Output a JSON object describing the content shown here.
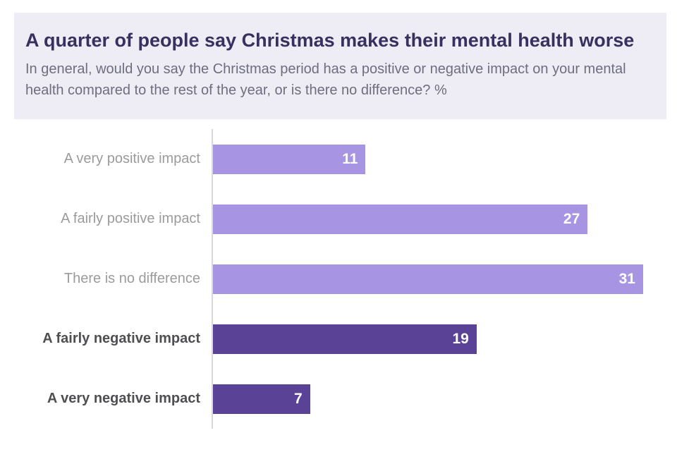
{
  "header": {
    "title": "A quarter of people say Christmas makes their mental health worse",
    "subtitle": "In general, would you say the Christmas period has a positive or negative impact on your mental health compared to the rest of the year, or is there no difference? %"
  },
  "colors": {
    "header_bg": "#eeecf4",
    "title_text": "#38315f",
    "subtitle_text": "#6e6e7e",
    "positive_bar": "#a795e3",
    "negative_bar": "#5a4397",
    "axis_line": "#d8d8d8",
    "label_muted": "#9b9b9b",
    "label_bold": "#4f4f52",
    "value_label_text": "#ffffff"
  },
  "chart_data": {
    "type": "bar",
    "orientation": "horizontal",
    "title": "A quarter of people say Christmas makes their mental health worse",
    "subtitle": "In general, would you say the Christmas period has a positive or negative impact on your mental health compared to the rest of the year, or is there no difference? %",
    "categories": [
      "A very positive impact",
      "A fairly positive impact",
      "There is no difference",
      "A fairly negative impact",
      "A very negative impact"
    ],
    "values": [
      11,
      27,
      31,
      19,
      7
    ],
    "emphasized": [
      false,
      false,
      false,
      true,
      true
    ],
    "xlim": [
      0,
      31
    ],
    "max_bar_fraction": 0.927,
    "value_labels": "inside-end",
    "grid": false,
    "legend": "none"
  }
}
